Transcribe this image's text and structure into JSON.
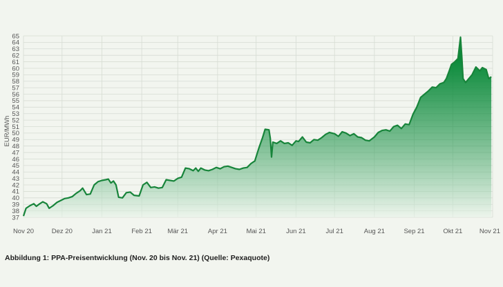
{
  "caption": "Abbildung 1: PPA-Preisentwicklung (Nov. 20 bis Nov. 21) (Quelle: Pexaquote)",
  "colors": {
    "line": "#17843a",
    "fill_top": "#0a8a3a",
    "fill_bottom": "#e9f4ea",
    "grid": "#d6dcd3",
    "text": "#555555"
  },
  "chart_data": {
    "type": "area",
    "ylabel": "EUR/MWh",
    "xlabel": "",
    "ylim": [
      37,
      65
    ],
    "y_ticks": [
      37,
      38,
      39,
      40,
      41,
      42,
      43,
      44,
      45,
      46,
      47,
      48,
      49,
      50,
      51,
      52,
      53,
      54,
      55,
      56,
      57,
      58,
      59,
      60,
      61,
      62,
      63,
      64,
      65
    ],
    "x_ticks": [
      {
        "date": "2020-11-01",
        "label": "Nov 20"
      },
      {
        "date": "2020-12-01",
        "label": "Dez 20"
      },
      {
        "date": "2021-01-01",
        "label": "Jan 21"
      },
      {
        "date": "2021-02-01",
        "label": "Feb 21"
      },
      {
        "date": "2021-03-01",
        "label": "Mär 21"
      },
      {
        "date": "2021-04-01",
        "label": "Apr 21"
      },
      {
        "date": "2021-05-01",
        "label": "Mai 21"
      },
      {
        "date": "2021-06-01",
        "label": "Jun 21"
      },
      {
        "date": "2021-07-01",
        "label": "Jul 21"
      },
      {
        "date": "2021-08-01",
        "label": "Aug 21"
      },
      {
        "date": "2021-09-01",
        "label": "Sep 21"
      },
      {
        "date": "2021-10-01",
        "label": "Okt 21"
      },
      {
        "date": "2021-11-01",
        "label": "Nov 21"
      }
    ],
    "grid": true,
    "legend": "none",
    "series": [
      {
        "points": [
          [
            "2020-11-01",
            37.2
          ],
          [
            "2020-11-03",
            38.4
          ],
          [
            "2020-11-06",
            38.8
          ],
          [
            "2020-11-09",
            39.1
          ],
          [
            "2020-11-11",
            38.7
          ],
          [
            "2020-11-13",
            39.0
          ],
          [
            "2020-11-16",
            39.4
          ],
          [
            "2020-11-19",
            39.1
          ],
          [
            "2020-11-21",
            38.4
          ],
          [
            "2020-11-24",
            38.8
          ],
          [
            "2020-11-27",
            39.3
          ],
          [
            "2020-11-30",
            39.6
          ],
          [
            "2020-12-03",
            39.9
          ],
          [
            "2020-12-06",
            40.0
          ],
          [
            "2020-12-09",
            40.2
          ],
          [
            "2020-12-12",
            40.7
          ],
          [
            "2020-12-15",
            41.1
          ],
          [
            "2020-12-17",
            41.5
          ],
          [
            "2020-12-20",
            40.5
          ],
          [
            "2020-12-23",
            40.6
          ],
          [
            "2020-12-26",
            42.0
          ],
          [
            "2020-12-29",
            42.5
          ],
          [
            "2021-01-01",
            42.7
          ],
          [
            "2021-01-04",
            42.8
          ],
          [
            "2021-01-06",
            42.9
          ],
          [
            "2021-01-08",
            42.3
          ],
          [
            "2021-01-10",
            42.6
          ],
          [
            "2021-01-12",
            42.0
          ],
          [
            "2021-01-14",
            40.1
          ],
          [
            "2021-01-17",
            40.0
          ],
          [
            "2021-01-20",
            40.8
          ],
          [
            "2021-01-23",
            40.9
          ],
          [
            "2021-01-26",
            40.4
          ],
          [
            "2021-01-30",
            40.3
          ],
          [
            "2021-02-02",
            42.0
          ],
          [
            "2021-02-05",
            42.4
          ],
          [
            "2021-02-08",
            41.6
          ],
          [
            "2021-02-11",
            41.7
          ],
          [
            "2021-02-14",
            41.5
          ],
          [
            "2021-02-17",
            41.6
          ],
          [
            "2021-02-20",
            42.8
          ],
          [
            "2021-02-23",
            42.7
          ],
          [
            "2021-02-26",
            42.6
          ],
          [
            "2021-03-01",
            43.0
          ],
          [
            "2021-03-04",
            43.2
          ],
          [
            "2021-03-07",
            44.6
          ],
          [
            "2021-03-10",
            44.5
          ],
          [
            "2021-03-13",
            44.2
          ],
          [
            "2021-03-15",
            44.6
          ],
          [
            "2021-03-17",
            44.1
          ],
          [
            "2021-03-19",
            44.6
          ],
          [
            "2021-03-22",
            44.3
          ],
          [
            "2021-03-25",
            44.2
          ],
          [
            "2021-03-28",
            44.4
          ],
          [
            "2021-03-31",
            44.7
          ],
          [
            "2021-04-03",
            44.5
          ],
          [
            "2021-04-06",
            44.8
          ],
          [
            "2021-04-09",
            44.9
          ],
          [
            "2021-04-12",
            44.7
          ],
          [
            "2021-04-15",
            44.5
          ],
          [
            "2021-04-18",
            44.4
          ],
          [
            "2021-04-21",
            44.6
          ],
          [
            "2021-04-24",
            44.7
          ],
          [
            "2021-04-27",
            45.3
          ],
          [
            "2021-04-30",
            45.7
          ],
          [
            "2021-05-03",
            47.6
          ],
          [
            "2021-05-06",
            49.3
          ],
          [
            "2021-05-08",
            50.6
          ],
          [
            "2021-05-11",
            50.5
          ],
          [
            "2021-05-12",
            49.2
          ],
          [
            "2021-05-13",
            46.3
          ],
          [
            "2021-05-14",
            48.6
          ],
          [
            "2021-05-17",
            48.4
          ],
          [
            "2021-05-20",
            48.8
          ],
          [
            "2021-05-23",
            48.4
          ],
          [
            "2021-05-26",
            48.5
          ],
          [
            "2021-05-29",
            48.1
          ],
          [
            "2021-06-01",
            48.8
          ],
          [
            "2021-06-03",
            48.7
          ],
          [
            "2021-06-06",
            49.4
          ],
          [
            "2021-06-09",
            48.6
          ],
          [
            "2021-06-12",
            48.5
          ],
          [
            "2021-06-15",
            49.0
          ],
          [
            "2021-06-18",
            48.9
          ],
          [
            "2021-06-21",
            49.3
          ],
          [
            "2021-06-24",
            49.8
          ],
          [
            "2021-06-27",
            50.1
          ],
          [
            "2021-07-01",
            49.9
          ],
          [
            "2021-07-04",
            49.5
          ],
          [
            "2021-07-07",
            50.2
          ],
          [
            "2021-07-10",
            50.0
          ],
          [
            "2021-07-13",
            49.6
          ],
          [
            "2021-07-16",
            49.9
          ],
          [
            "2021-07-19",
            49.4
          ],
          [
            "2021-07-22",
            49.3
          ],
          [
            "2021-07-25",
            48.9
          ],
          [
            "2021-07-28",
            48.8
          ],
          [
            "2021-08-01",
            49.4
          ],
          [
            "2021-08-04",
            50.1
          ],
          [
            "2021-08-07",
            50.4
          ],
          [
            "2021-08-10",
            50.5
          ],
          [
            "2021-08-13",
            50.3
          ],
          [
            "2021-08-16",
            51.0
          ],
          [
            "2021-08-19",
            51.2
          ],
          [
            "2021-08-22",
            50.7
          ],
          [
            "2021-08-25",
            51.4
          ],
          [
            "2021-08-28",
            51.3
          ],
          [
            "2021-08-31",
            52.9
          ],
          [
            "2021-09-03",
            54.0
          ],
          [
            "2021-09-06",
            55.5
          ],
          [
            "2021-09-09",
            56.0
          ],
          [
            "2021-09-12",
            56.5
          ],
          [
            "2021-09-15",
            57.1
          ],
          [
            "2021-09-18",
            57.0
          ],
          [
            "2021-09-21",
            57.6
          ],
          [
            "2021-09-24",
            57.8
          ],
          [
            "2021-09-26",
            58.4
          ],
          [
            "2021-09-28",
            59.5
          ],
          [
            "2021-09-30",
            60.6
          ],
          [
            "2021-10-02",
            60.9
          ],
          [
            "2021-10-05",
            61.5
          ],
          [
            "2021-10-07",
            64.8
          ],
          [
            "2021-10-08",
            61.8
          ],
          [
            "2021-10-09",
            58.4
          ],
          [
            "2021-10-11",
            57.8
          ],
          [
            "2021-10-13",
            58.3
          ],
          [
            "2021-10-16",
            59.0
          ],
          [
            "2021-10-19",
            60.2
          ],
          [
            "2021-10-22",
            59.6
          ],
          [
            "2021-10-24",
            60.1
          ],
          [
            "2021-10-27",
            59.8
          ],
          [
            "2021-10-29",
            58.4
          ],
          [
            "2021-10-31",
            58.7
          ]
        ]
      }
    ]
  }
}
